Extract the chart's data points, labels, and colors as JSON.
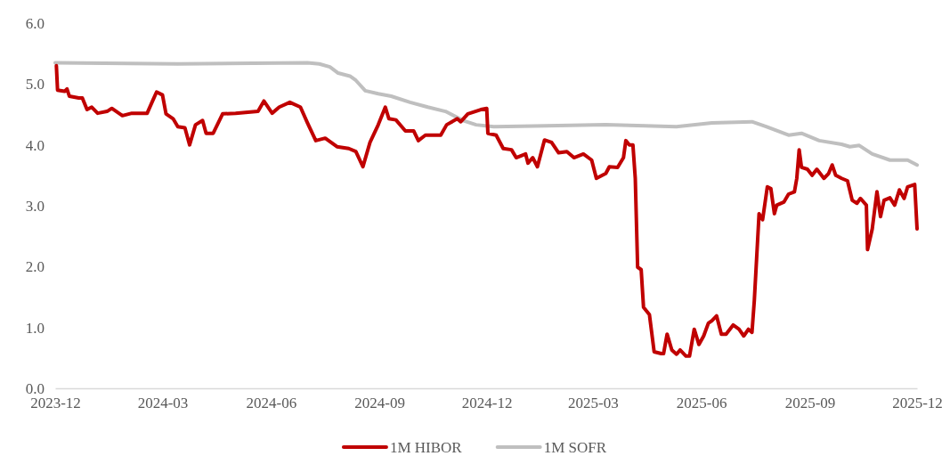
{
  "chart_data": {
    "type": "line",
    "x": [
      "2023-12-02",
      "2023-12-03",
      "2023-12-09",
      "2023-12-11",
      "2023-12-13",
      "2023-12-21",
      "2023-12-24",
      "2023-12-28",
      "2024-01-01",
      "2024-01-06",
      "2024-01-14",
      "2024-01-18",
      "2024-01-27",
      "2024-02-04",
      "2024-02-17",
      "2024-02-22",
      "2024-02-25",
      "2024-03-01",
      "2024-03-04",
      "2024-03-10",
      "2024-03-14",
      "2024-03-20",
      "2024-03-24",
      "2024-03-29",
      "2024-04-04",
      "2024-04-07",
      "2024-04-13",
      "2024-04-21",
      "2024-05-02",
      "2024-05-21",
      "2024-05-26",
      "2024-06-02",
      "2024-06-08",
      "2024-06-17",
      "2024-06-26",
      "2024-07-02",
      "2024-07-09",
      "2024-07-17",
      "2024-07-27",
      "2024-08-06",
      "2024-08-12",
      "2024-08-18",
      "2024-08-24",
      "2024-08-31",
      "2024-09-06",
      "2024-09-09",
      "2024-09-15",
      "2024-09-23",
      "2024-09-30",
      "2024-10-04",
      "2024-10-10",
      "2024-10-23",
      "2024-10-28",
      "2024-11-06",
      "2024-11-09",
      "2024-11-15",
      "2024-11-26",
      "2024-12-01",
      "2024-12-02",
      "2024-12-09",
      "2024-12-15",
      "2024-12-22",
      "2024-12-26",
      "2025-01-03",
      "2025-01-05",
      "2025-01-09",
      "2025-01-13",
      "2025-01-19",
      "2025-01-25",
      "2025-01-31",
      "2025-02-07",
      "2025-02-13",
      "2025-02-21",
      "2025-02-28",
      "2025-03-04",
      "2025-03-12",
      "2025-03-15",
      "2025-03-22",
      "2025-03-27",
      "2025-03-29",
      "2025-04-01",
      "2025-04-04",
      "2025-04-06",
      "2025-04-08",
      "2025-04-11",
      "2025-04-13",
      "2025-04-18",
      "2025-04-22",
      "2025-04-28",
      "2025-04-30",
      "2025-05-03",
      "2025-05-07",
      "2025-05-11",
      "2025-05-14",
      "2025-05-19",
      "2025-05-22",
      "2025-05-26",
      "2025-05-30",
      "2025-06-03",
      "2025-06-07",
      "2025-06-10",
      "2025-06-14",
      "2025-06-18",
      "2025-06-22",
      "2025-06-28",
      "2025-07-03",
      "2025-07-07",
      "2025-07-11",
      "2025-07-14",
      "2025-07-16",
      "2025-07-20",
      "2025-07-23",
      "2025-07-27",
      "2025-07-30",
      "2025-08-02",
      "2025-08-04",
      "2025-08-10",
      "2025-08-14",
      "2025-08-19",
      "2025-08-21",
      "2025-08-23",
      "2025-08-25",
      "2025-08-30",
      "2025-09-03",
      "2025-09-07",
      "2025-09-13",
      "2025-09-17",
      "2025-09-20",
      "2025-09-23",
      "2025-09-28",
      "2025-10-03",
      "2025-10-07",
      "2025-10-11",
      "2025-10-14",
      "2025-10-19",
      "2025-10-20",
      "2025-10-24",
      "2025-10-28",
      "2025-10-31",
      "2025-11-03",
      "2025-11-08",
      "2025-11-12",
      "2025-11-16",
      "2025-11-20",
      "2025-11-23",
      "2025-11-29",
      "2025-12-01"
    ],
    "series": [
      {
        "name": "1M HIBOR",
        "color": "#c00000",
        "values": [
          5.3,
          4.9,
          4.88,
          4.92,
          4.8,
          4.77,
          4.77,
          4.58,
          4.62,
          4.52,
          4.55,
          4.6,
          4.48,
          4.52,
          4.52,
          4.74,
          4.87,
          4.82,
          4.51,
          4.43,
          4.3,
          4.28,
          4.0,
          4.33,
          4.4,
          4.19,
          4.19,
          4.51,
          4.52,
          4.55,
          4.72,
          4.52,
          4.62,
          4.7,
          4.62,
          4.36,
          4.07,
          4.11,
          3.97,
          3.94,
          3.89,
          3.64,
          4.04,
          4.33,
          4.62,
          4.43,
          4.41,
          4.23,
          4.23,
          4.07,
          4.16,
          4.16,
          4.33,
          4.43,
          4.38,
          4.51,
          4.58,
          4.6,
          4.19,
          4.16,
          3.94,
          3.92,
          3.79,
          3.85,
          3.7,
          3.79,
          3.64,
          4.08,
          4.04,
          3.87,
          3.89,
          3.79,
          3.85,
          3.75,
          3.45,
          3.53,
          3.64,
          3.63,
          3.79,
          4.07,
          4.0,
          4.0,
          3.45,
          1.99,
          1.95,
          1.33,
          1.21,
          0.6,
          0.57,
          0.57,
          0.89,
          0.63,
          0.56,
          0.63,
          0.53,
          0.53,
          0.97,
          0.72,
          0.86,
          1.07,
          1.11,
          1.19,
          0.89,
          0.89,
          1.04,
          0.97,
          0.86,
          0.97,
          0.92,
          1.45,
          2.87,
          2.77,
          3.31,
          3.28,
          2.87,
          3.01,
          3.06,
          3.19,
          3.23,
          3.45,
          3.92,
          3.63,
          3.6,
          3.5,
          3.6,
          3.45,
          3.53,
          3.67,
          3.5,
          3.45,
          3.41,
          3.09,
          3.04,
          3.12,
          3.01,
          2.28,
          2.62,
          3.23,
          2.82,
          3.09,
          3.13,
          3.01,
          3.26,
          3.12,
          3.31,
          3.35,
          2.62
        ]
      },
      {
        "name": "1M SOFR",
        "color": "#bfbfbf",
        "x": [
          "2023-12-01",
          "2024-03-14",
          "2024-07-02",
          "2024-07-12",
          "2024-07-21",
          "2024-07-28",
          "2024-08-07",
          "2024-08-12",
          "2024-08-20",
          "2024-08-31",
          "2024-09-11",
          "2024-09-27",
          "2024-10-12",
          "2024-10-27",
          "2024-11-11",
          "2024-11-22",
          "2024-12-07",
          "2025-01-10",
          "2025-03-12",
          "2025-05-11",
          "2025-06-10",
          "2025-07-14",
          "2025-07-26",
          "2025-08-14",
          "2025-08-25",
          "2025-09-09",
          "2025-09-28",
          "2025-10-05",
          "2025-10-13",
          "2025-10-24",
          "2025-11-08",
          "2025-11-23",
          "2025-12-01"
        ],
        "values": [
          5.35,
          5.33,
          5.35,
          5.33,
          5.28,
          5.18,
          5.13,
          5.06,
          4.89,
          4.84,
          4.8,
          4.7,
          4.62,
          4.55,
          4.4,
          4.33,
          4.3,
          4.31,
          4.33,
          4.3,
          4.36,
          4.38,
          4.3,
          4.16,
          4.19,
          4.07,
          4.01,
          3.97,
          3.99,
          3.85,
          3.75,
          3.75,
          3.67
        ]
      }
    ],
    "xlim": [
      "2023-12-01",
      "2025-12-01"
    ],
    "xticks": [
      "2023-12",
      "2024-03",
      "2024-06",
      "2024-09",
      "2024-12",
      "2025-03",
      "2025-06",
      "2025-09",
      "2025-12"
    ],
    "ylim": [
      0,
      6
    ],
    "yticks": [
      {
        "value": 0,
        "label": "0.0"
      },
      {
        "value": 1,
        "label": "1.0"
      },
      {
        "value": 2,
        "label": "2.0"
      },
      {
        "value": 3,
        "label": "3.0"
      },
      {
        "value": 4,
        "label": "4.0"
      },
      {
        "value": 5,
        "label": "5.0"
      },
      {
        "value": 6,
        "label": "6.0"
      }
    ],
    "legend": "bottom",
    "line_style": "solid",
    "marker": "none"
  }
}
